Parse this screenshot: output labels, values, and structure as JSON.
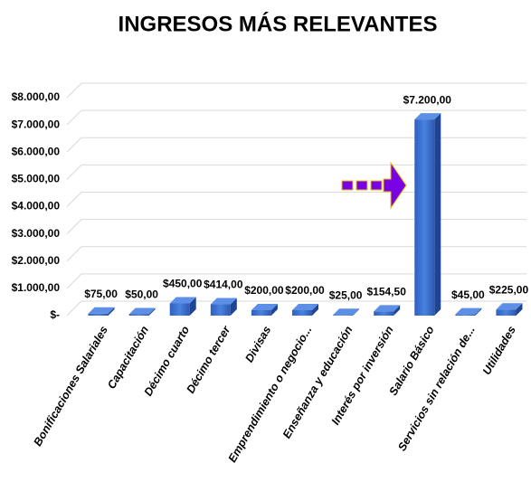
{
  "chart_data": {
    "type": "bar3d",
    "title": "INGRESOS MÁS RELEVANTES",
    "categories": [
      "Bonificaciones Salariales",
      "Capacitación",
      "Décimo cuarto",
      "Décimo tercer",
      "Divisas",
      "Emprendimiento o negocio...",
      "Enseñanza y educación",
      "Interés por inversión",
      "Salario Básico",
      "Servicios sin relación de...",
      "Utilidades"
    ],
    "values": [
      75,
      50,
      450,
      414,
      200,
      200,
      25,
      154.5,
      7200,
      45,
      225
    ],
    "value_labels": [
      "$75,00",
      "$50,00",
      "$450,00",
      "$414,00",
      "$200,00",
      "$200,00",
      "$25,00",
      "$154,50",
      "$7.200,00",
      "$45,00",
      "$225,00"
    ],
    "color": "#3a6fd0",
    "ylim": [
      0,
      8000
    ],
    "yticks": [
      {
        "value": 0,
        "label": "$-"
      },
      {
        "value": 1000,
        "label": "$1.000,00"
      },
      {
        "value": 2000,
        "label": "$2.000,00"
      },
      {
        "value": 3000,
        "label": "$3.000,00"
      },
      {
        "value": 4000,
        "label": "$4.000,00"
      },
      {
        "value": 5000,
        "label": "$5.000,00"
      },
      {
        "value": 6000,
        "label": "$6.000,00"
      },
      {
        "value": 7000,
        "label": "$7.000,00"
      },
      {
        "value": 8000,
        "label": "$8.000,00"
      }
    ],
    "grid": true
  }
}
